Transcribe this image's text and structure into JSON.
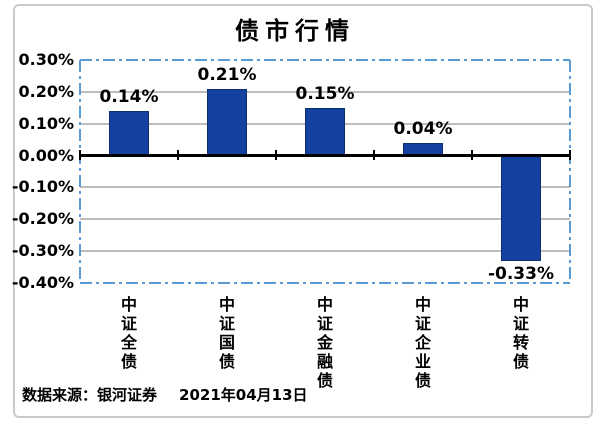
{
  "page": {
    "background": "#ffffff"
  },
  "chart": {
    "title": "债市行情",
    "footer": {
      "source": "数据来源：银河证券",
      "date": "2021年04月13日"
    }
  },
  "chart_data": {
    "type": "bar",
    "title": "债市行情",
    "categories": [
      "中证全债",
      "中证国债",
      "中证金融债",
      "中证企业债",
      "中证转债"
    ],
    "values": [
      0.14,
      0.21,
      0.15,
      0.04,
      -0.33
    ],
    "value_labels": [
      "0.14%",
      "0.21%",
      "0.15%",
      "0.04%",
      "-0.33%"
    ],
    "unit": "%",
    "ytick_labels": [
      "0.30%",
      "0.20%",
      "0.10%",
      "0.00%",
      "-0.10%",
      "-0.20%",
      "-0.30%",
      "-0.40%"
    ],
    "ytick_values": [
      0.3,
      0.2,
      0.1,
      0.0,
      -0.1,
      -0.2,
      -0.3,
      -0.4
    ],
    "ylim": [
      -0.4,
      0.3
    ],
    "xlabel": "",
    "ylabel": "",
    "grid": true,
    "legend_position": "none",
    "colors": {
      "bar_fill": "#14409f",
      "bar_border": "#0c2f70",
      "plot_border": "#5b9bd5",
      "gridline": "#bdbdbd",
      "zero_axis": "#000000",
      "text": "#000000",
      "card_border": "#c9c9c9"
    }
  }
}
